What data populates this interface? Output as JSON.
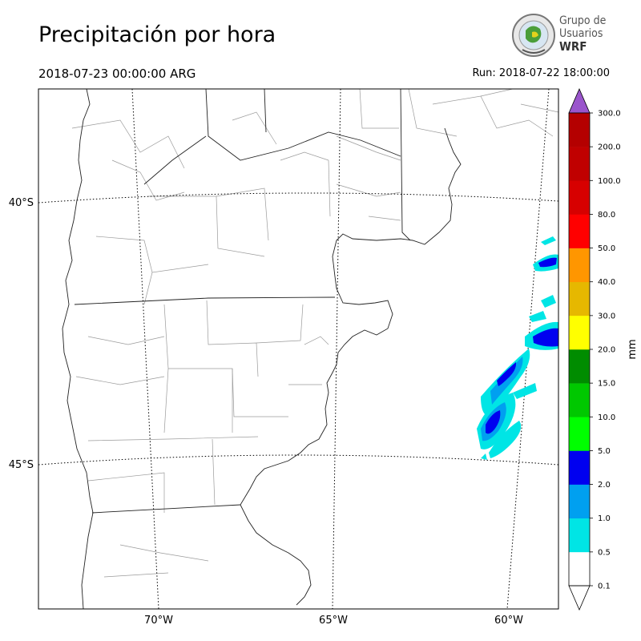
{
  "header": {
    "title": "Precipitación por hora",
    "valid_time": "2018-07-23 00:00:00 ARG",
    "run_time": "Run: 2018-07-22 18:00:00"
  },
  "logo": {
    "line1": "Grupo de",
    "line2": "Usuarios",
    "line3": "WRF"
  },
  "map": {
    "lat_labels": [
      "40°S",
      "45°S"
    ],
    "lon_labels": [
      "70°W",
      "65°W",
      "60°W"
    ]
  },
  "colorbar": {
    "unit": "mm",
    "ticks": [
      "0.1",
      "0.5",
      "1.0",
      "2.0",
      "5.0",
      "10.0",
      "15.0",
      "20.0",
      "30.0",
      "40.0",
      "50.0",
      "80.0",
      "100.0",
      "200.0",
      "300.0"
    ],
    "colors": [
      "#ffffff",
      "#00e5e5",
      "#00a0f0",
      "#0000f0",
      "#00ff00",
      "#00c800",
      "#008c00",
      "#ffff00",
      "#e6b800",
      "#ff9600",
      "#ff0000",
      "#d70000",
      "#c00000",
      "#b40000",
      "#9a55cc"
    ]
  }
}
